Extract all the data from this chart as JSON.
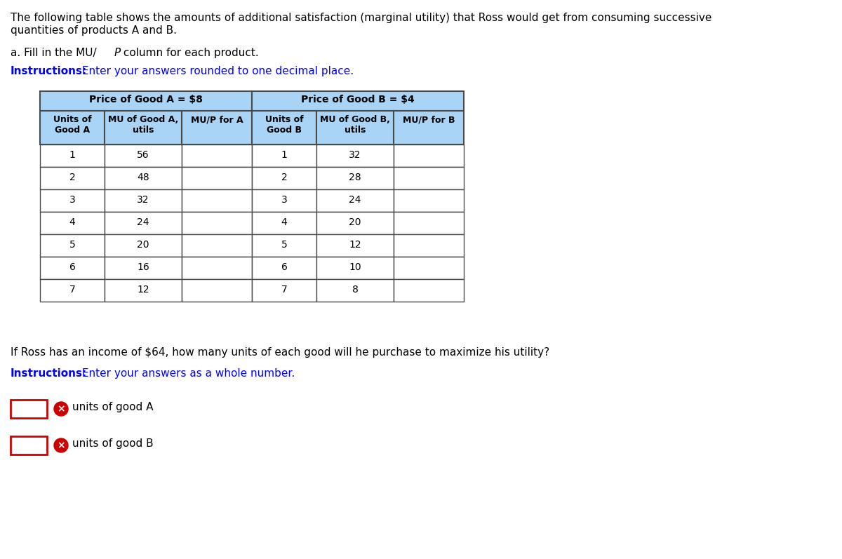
{
  "title_line1": "The following table shows the amounts of additional satisfaction (marginal utility) that Ross would get from consuming successive",
  "title_line2": "quantities of products A and B.",
  "subtitle_plain1": "a. Fill in the MU/",
  "subtitle_italic": "P",
  "subtitle_plain2": " column for each product.",
  "instr1_bold": "Instructions:",
  "instr1_rest": " Enter your answers rounded to one decimal place.",
  "price_a_header": "Price of Good A = $8",
  "price_b_header": "Price of Good B = $4",
  "col_headers": [
    "Units of\nGood A",
    "MU of Good A,\nutils",
    "MU/P for A",
    "Units of\nGood B",
    "MU of Good B,\nutils",
    "MU/P for B"
  ],
  "units_a": [
    1,
    2,
    3,
    4,
    5,
    6,
    7
  ],
  "mu_a": [
    56,
    48,
    32,
    24,
    20,
    16,
    12
  ],
  "units_b": [
    1,
    2,
    3,
    4,
    5,
    6,
    7
  ],
  "mu_b": [
    32,
    28,
    24,
    20,
    12,
    10,
    8
  ],
  "question2": "If Ross has an income of $64, how many units of each good will he purchase to maximize his utility?",
  "instr2_bold": "Instructions:",
  "instr2_rest": " Enter your answers as a whole number.",
  "label_a": "units of good A",
  "label_b": "units of good B",
  "header_bg": "#aad4f5",
  "border_color": "#4a4a4a",
  "text_color": "#000000",
  "blue_text": "#0000ff",
  "input_box_border": "#cc0000",
  "error_icon_color": "#cc0000"
}
